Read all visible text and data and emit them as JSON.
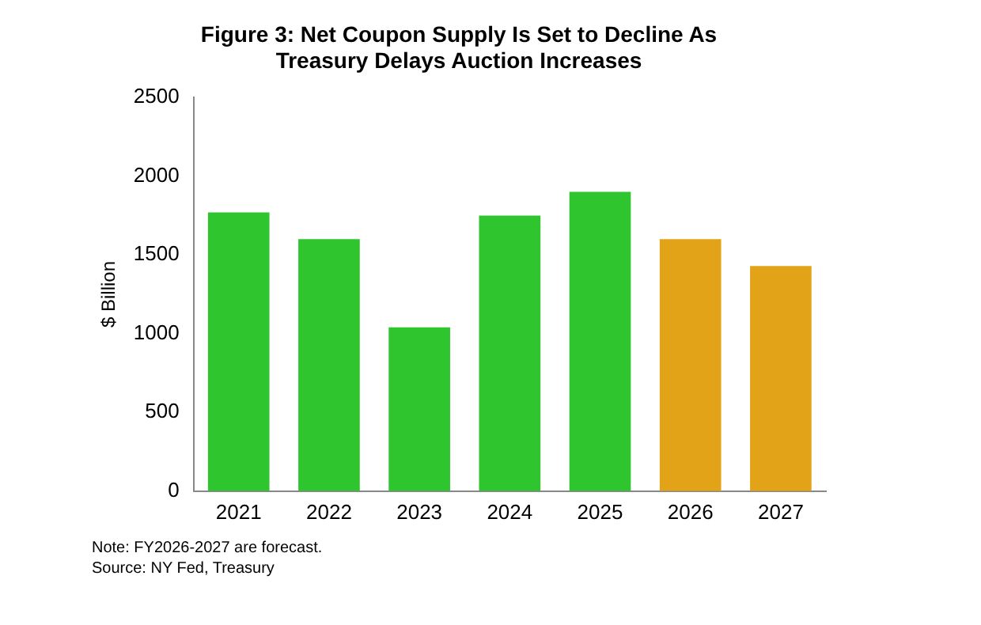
{
  "chart_data": {
    "type": "bar",
    "title": "Figure 3: Net Coupon Supply Is Set to Decline As\nTreasury Delays Auction Increases",
    "ylabel": "$ Billion",
    "categories": [
      "2021",
      "2022",
      "2023",
      "2024",
      "2025",
      "2026",
      "2027"
    ],
    "values": [
      1770,
      1600,
      1040,
      1750,
      1900,
      1600,
      1430
    ],
    "colors": [
      "#2ec52e",
      "#2ec52e",
      "#2ec52e",
      "#2ec52e",
      "#2ec52e",
      "#e3a318",
      "#e3a318"
    ],
    "ylim": [
      0,
      2500
    ],
    "yticks": [
      0,
      500,
      1000,
      1500,
      2000,
      2500
    ],
    "grid": false,
    "legend": false,
    "annotations": [
      "Note: FY2026-2027 are forecast.",
      "Source: NY Fed, Treasury"
    ]
  }
}
